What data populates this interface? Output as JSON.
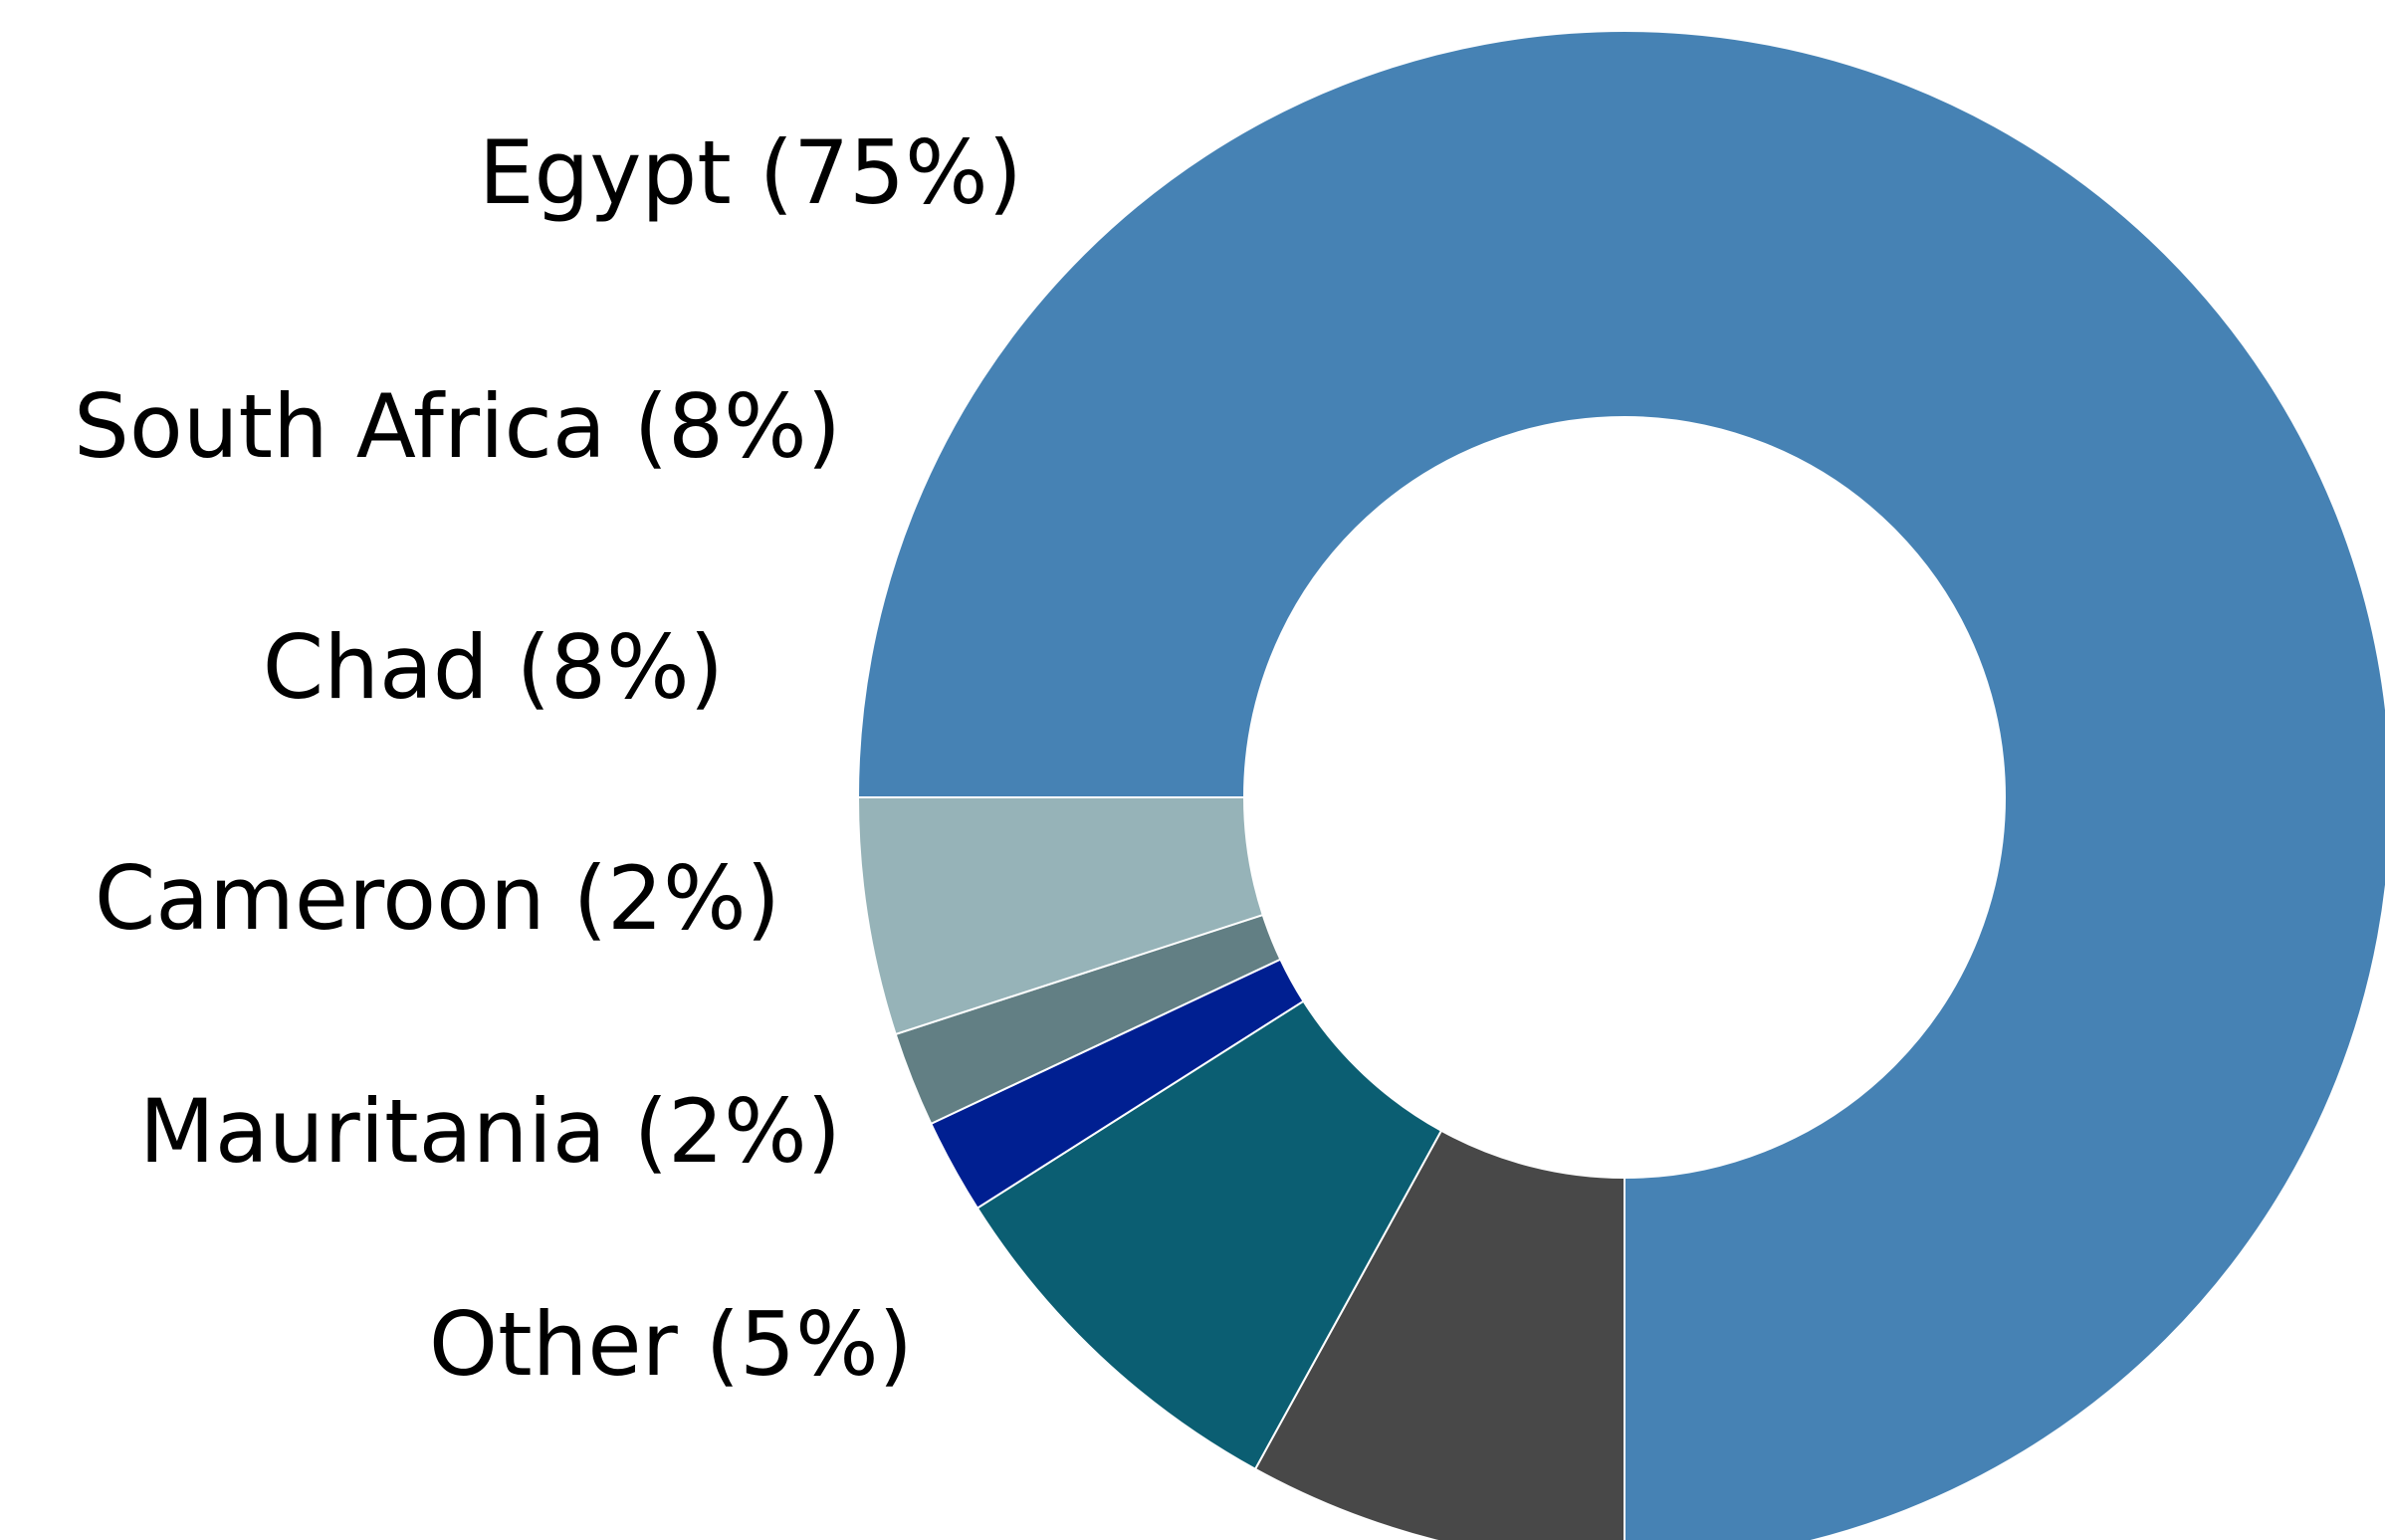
{
  "chart_data": {
    "type": "donut",
    "categories": [
      "Egypt (75%)",
      "South Africa (8%)",
      "Chad (8%)",
      "Cameroon (2%)",
      "Mauritania (2%)",
      "Other (5%)"
    ],
    "values": [
      75,
      8,
      8,
      2,
      2,
      5
    ],
    "colors": [
      "#4682b4",
      "#484848",
      "#0b5e72",
      "#001f91",
      "#627f84",
      "#96b3b8"
    ]
  }
}
